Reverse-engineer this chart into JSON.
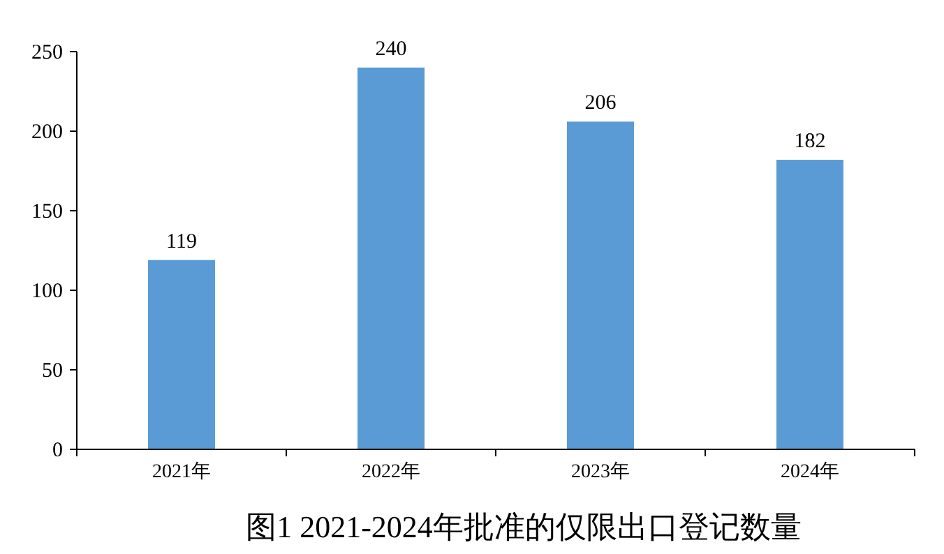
{
  "chart_data": {
    "type": "bar",
    "title": "图1 2021-2024年批准的仅限出口登记数量",
    "categories": [
      "2021年",
      "2022年",
      "2023年",
      "2024年"
    ],
    "values": [
      119,
      240,
      206,
      182
    ],
    "color": "#5b9bd5",
    "ylim": [
      0,
      250
    ],
    "yticks": [
      0,
      50,
      100,
      150,
      200,
      250
    ],
    "data_labels": true,
    "grid": false
  }
}
